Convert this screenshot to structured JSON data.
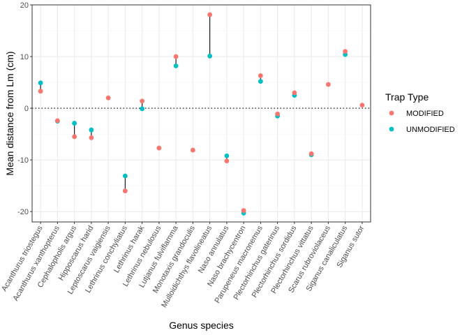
{
  "chart_data": {
    "type": "scatter",
    "xlabel": "Genus species",
    "ylabel": "Mean distance from Lm (cm)",
    "ylim": [
      -22,
      20
    ],
    "yticks": [
      -20,
      -10,
      0,
      10,
      20
    ],
    "categories": [
      "Acanthurus triostegus",
      "Acanthurus xanthopterus",
      "Cephalopholis argus",
      "Hipposcarus harid",
      "Leptoscarus vaigiensis",
      "Lethrinus conchyliatus",
      "Lethrinus harak",
      "Lethrinus nebulosus",
      "Lutjanus fulviflamma",
      "Monotaxis grandoculis",
      "Mulloidichthys flavolineatus",
      "Naso annulatus",
      "Naso brachycentron",
      "Parupeneus macronemus",
      "Plectorhinchus gaterinus",
      "Plectorhinchus sordidus",
      "Plectorhinchus vittatus",
      "Scarus rubroviolaceus",
      "Siganus canaliculatus",
      "Siganus sutor"
    ],
    "series": [
      {
        "name": "MODIFIED",
        "color": "#F8766D",
        "values": [
          3.3,
          -2.4,
          -5.5,
          -5.7,
          2.0,
          -16.0,
          1.4,
          -7.7,
          10.0,
          -8.1,
          18.1,
          -10.2,
          -19.8,
          6.3,
          -1.1,
          3.0,
          -8.8,
          4.6,
          11.0,
          0.6
        ]
      },
      {
        "name": "UNMODIFIED",
        "color": "#00BFC4",
        "values": [
          4.9,
          -2.5,
          -2.9,
          -4.2,
          null,
          -13.1,
          -0.1,
          null,
          8.2,
          null,
          10.1,
          -9.2,
          -20.3,
          5.2,
          -1.5,
          2.5,
          -9.0,
          null,
          10.4,
          null
        ]
      }
    ],
    "reference_line": {
      "y": 0,
      "style": "dotted"
    },
    "grid": true,
    "legend": {
      "title": "Trap Type",
      "placement": "right"
    }
  }
}
